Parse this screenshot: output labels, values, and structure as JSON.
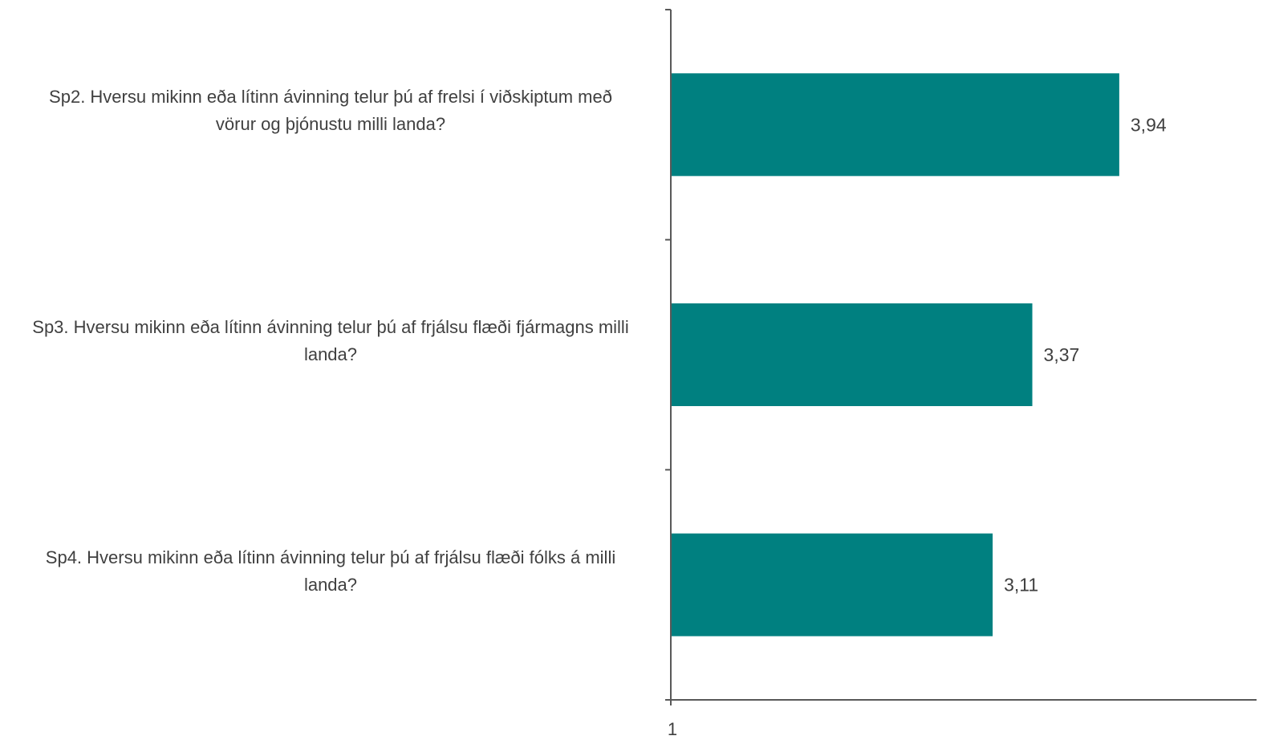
{
  "chart_data": {
    "type": "bar",
    "orientation": "horizontal",
    "categories": [
      [
        "Sp2. Hversu mikinn eða lítinn ávinning telur þú af frelsi í viðskiptum með",
        "vörur og þjónustu milli landa?"
      ],
      [
        "Sp3. Hversu mikinn eða lítinn ávinning telur þú af frjálsu flæði fjármagns milli",
        "landa?"
      ],
      [
        "Sp4. Hversu mikinn eða lítinn ávinning telur þú af frjálsu flæði fólks á milli",
        "landa?"
      ]
    ],
    "values": [
      3.94,
      3.37,
      3.11
    ],
    "value_labels": [
      "3,94",
      "3,37",
      "3,11"
    ],
    "xlim": [
      1,
      5
    ],
    "x_tick_labels": [
      "1"
    ],
    "bar_color": "#008080",
    "axis_color": "#595959",
    "text_color": "#404040",
    "grid": false,
    "legend": "none"
  }
}
